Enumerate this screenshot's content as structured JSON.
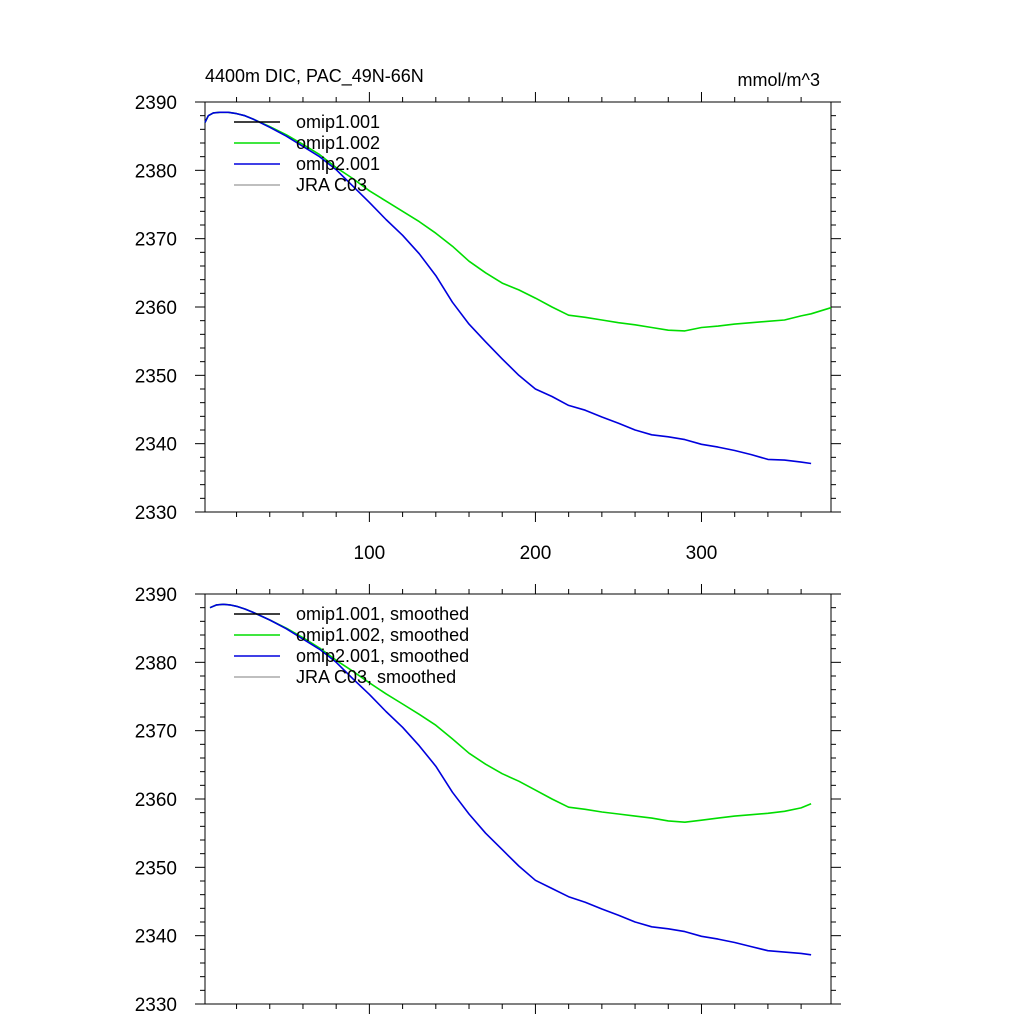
{
  "title": "4400m DIC, PAC_49N-66N",
  "units": "mmol/m^3",
  "colors": {
    "omip1.001": "#000000",
    "omip1.002": "#00dd00",
    "omip2.001": "#0000dd",
    "JRA C03": "#aaaaaa"
  },
  "chart_data": [
    {
      "type": "line",
      "panel": "raw",
      "title": "4400m DIC, PAC_49N-66N",
      "units": "mmol/m^3",
      "xlim": [
        1,
        378
      ],
      "ylim": [
        2330,
        2390
      ],
      "xticks": [
        100,
        200,
        300
      ],
      "yticks": [
        2330,
        2340,
        2350,
        2360,
        2370,
        2380,
        2390
      ],
      "legend_position": "top-left",
      "series": [
        {
          "name": "omip1.001",
          "color": "#000000",
          "x": [],
          "y": []
        },
        {
          "name": "omip1.002",
          "color": "#00dd00",
          "x": [
            1,
            3,
            6,
            10,
            15,
            20,
            25,
            30,
            40,
            50,
            60,
            70,
            80,
            90,
            100,
            110,
            120,
            130,
            140,
            150,
            160,
            170,
            180,
            190,
            200,
            210,
            220,
            230,
            240,
            250,
            260,
            270,
            280,
            290,
            300,
            310,
            320,
            330,
            340,
            350,
            360,
            366,
            378
          ],
          "y": [
            2387.0,
            2388.0,
            2388.4,
            2388.5,
            2388.5,
            2388.3,
            2388.0,
            2387.5,
            2386.4,
            2385.2,
            2383.8,
            2382.3,
            2380.4,
            2378.8,
            2377.0,
            2375.5,
            2374.0,
            2372.5,
            2370.8,
            2368.9,
            2366.7,
            2365.0,
            2363.5,
            2362.5,
            2361.3,
            2360.0,
            2358.8,
            2358.5,
            2358.1,
            2357.7,
            2357.4,
            2357.0,
            2356.6,
            2356.5,
            2357.0,
            2357.2,
            2357.5,
            2357.7,
            2357.9,
            2358.1,
            2358.7,
            2359.0,
            2359.9
          ]
        },
        {
          "name": "omip2.001",
          "color": "#0000dd",
          "x": [
            1,
            3,
            6,
            10,
            15,
            20,
            25,
            30,
            40,
            50,
            60,
            70,
            80,
            90,
            100,
            110,
            120,
            130,
            140,
            150,
            160,
            170,
            180,
            190,
            200,
            210,
            220,
            230,
            240,
            250,
            260,
            270,
            280,
            290,
            300,
            310,
            320,
            330,
            340,
            350,
            360,
            366
          ],
          "y": [
            2387.0,
            2388.0,
            2388.4,
            2388.5,
            2388.5,
            2388.3,
            2388.0,
            2387.5,
            2386.3,
            2385.0,
            2383.5,
            2382.0,
            2380.1,
            2377.7,
            2375.3,
            2372.8,
            2370.5,
            2367.8,
            2364.6,
            2360.7,
            2357.5,
            2354.9,
            2352.4,
            2350.0,
            2348.0,
            2346.9,
            2345.6,
            2344.9,
            2343.9,
            2343.0,
            2342.0,
            2341.3,
            2341.0,
            2340.6,
            2339.9,
            2339.5,
            2339.0,
            2338.4,
            2337.7,
            2337.6,
            2337.3,
            2337.1
          ]
        },
        {
          "name": "JRA C03",
          "color": "#aaaaaa",
          "x": [],
          "y": []
        }
      ]
    },
    {
      "type": "line",
      "panel": "smoothed",
      "xlim": [
        1,
        378
      ],
      "ylim": [
        2330,
        2390
      ],
      "xticks": [
        100,
        200,
        300
      ],
      "yticks": [
        2330,
        2340,
        2350,
        2360,
        2370,
        2380,
        2390
      ],
      "legend_position": "top-left",
      "series": [
        {
          "name": "omip1.001, smoothed",
          "color": "#000000",
          "x": [],
          "y": []
        },
        {
          "name": "omip1.002, smoothed",
          "color": "#00dd00",
          "x": [
            4,
            8,
            12,
            16,
            20,
            25,
            30,
            40,
            50,
            60,
            70,
            80,
            90,
            100,
            110,
            120,
            130,
            140,
            150,
            160,
            170,
            180,
            190,
            200,
            210,
            220,
            230,
            240,
            250,
            260,
            270,
            280,
            290,
            300,
            310,
            320,
            330,
            340,
            350,
            360,
            366
          ],
          "y": [
            2388.0,
            2388.4,
            2388.5,
            2388.4,
            2388.2,
            2387.8,
            2387.3,
            2386.2,
            2385.0,
            2383.6,
            2382.1,
            2380.3,
            2378.7,
            2377.0,
            2375.4,
            2373.9,
            2372.4,
            2370.8,
            2368.8,
            2366.7,
            2365.1,
            2363.7,
            2362.6,
            2361.3,
            2360.0,
            2358.8,
            2358.5,
            2358.1,
            2357.8,
            2357.5,
            2357.2,
            2356.8,
            2356.6,
            2356.9,
            2357.2,
            2357.5,
            2357.7,
            2357.9,
            2358.2,
            2358.7,
            2359.3
          ]
        },
        {
          "name": "omip2.001, smoothed",
          "color": "#0000dd",
          "x": [
            4,
            8,
            12,
            16,
            20,
            25,
            30,
            40,
            50,
            60,
            70,
            80,
            90,
            100,
            110,
            120,
            130,
            140,
            150,
            160,
            170,
            180,
            190,
            200,
            210,
            220,
            230,
            240,
            250,
            260,
            270,
            280,
            290,
            300,
            310,
            320,
            330,
            340,
            350,
            360,
            366
          ],
          "y": [
            2388.0,
            2388.4,
            2388.5,
            2388.4,
            2388.2,
            2387.8,
            2387.3,
            2386.2,
            2384.9,
            2383.4,
            2381.9,
            2380.0,
            2377.6,
            2375.3,
            2372.8,
            2370.5,
            2367.8,
            2364.8,
            2361.0,
            2357.8,
            2355.0,
            2352.6,
            2350.2,
            2348.1,
            2346.9,
            2345.7,
            2344.9,
            2343.9,
            2343.0,
            2342.0,
            2341.3,
            2341.0,
            2340.6,
            2339.9,
            2339.5,
            2339.0,
            2338.4,
            2337.8,
            2337.6,
            2337.4,
            2337.2
          ]
        },
        {
          "name": "JRA C03, smoothed",
          "color": "#aaaaaa",
          "x": [],
          "y": []
        }
      ]
    }
  ]
}
